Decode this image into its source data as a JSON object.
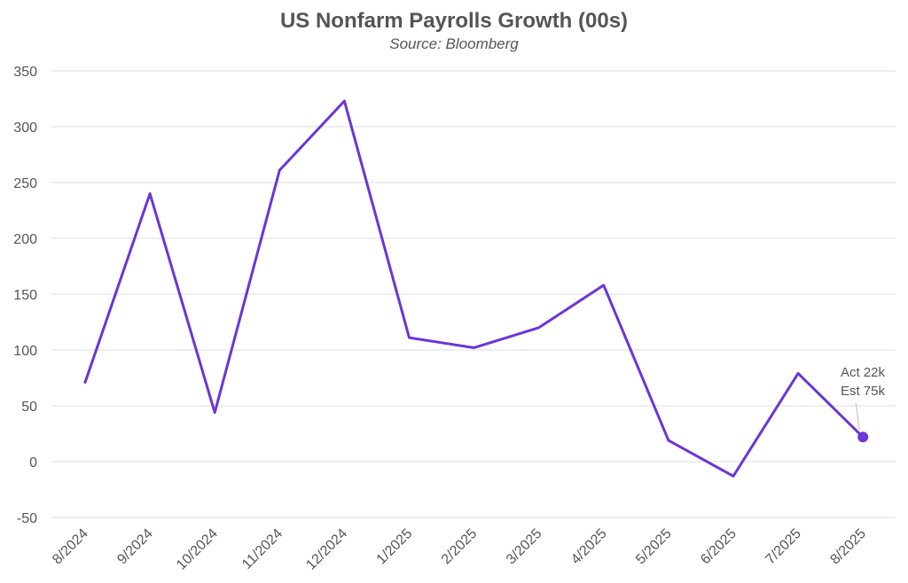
{
  "chart_data": {
    "type": "line",
    "title": "US Nonfarm Payrolls Growth (00s)",
    "subtitle": "Source: Bloomberg",
    "xlabel": "",
    "ylabel": "",
    "categories": [
      "8/2024",
      "9/2024",
      "10/2024",
      "11/2024",
      "12/2024",
      "1/2025",
      "2/2025",
      "3/2025",
      "4/2025",
      "5/2025",
      "6/2025",
      "7/2025",
      "8/2025"
    ],
    "series": [
      {
        "values": [
          71,
          240,
          44,
          261,
          323,
          111,
          102,
          120,
          158,
          19,
          -13,
          79,
          22
        ],
        "color": "#6a35d9"
      }
    ],
    "ylim": [
      -50,
      350
    ],
    "yticks": [
      -50,
      0,
      50,
      100,
      150,
      200,
      250,
      300,
      350
    ],
    "grid": true,
    "legend": "none",
    "annotation": {
      "lines": [
        "Act 22k",
        "Est 75k"
      ],
      "category": "8/2025",
      "value": 22
    }
  }
}
